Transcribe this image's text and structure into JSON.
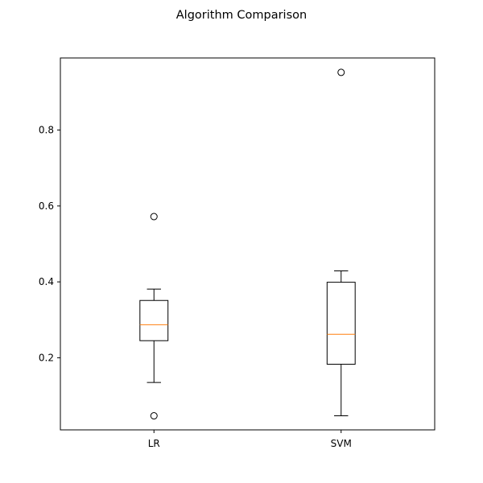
{
  "chart_data": {
    "type": "boxplot",
    "title": "Algorithm Comparison",
    "xlabel": "",
    "ylabel": "",
    "ylim": [
      0.01,
      0.99
    ],
    "yticks": [
      0.2,
      0.4,
      0.6,
      0.8
    ],
    "ytick_labels": [
      "0.2",
      "0.4",
      "0.6",
      "0.8"
    ],
    "categories": [
      "LR",
      "SVM"
    ],
    "boxes": [
      {
        "name": "LR",
        "whisker_low": 0.135,
        "q1": 0.245,
        "median": 0.287,
        "q3": 0.351,
        "whisker_high": 0.381,
        "outliers": [
          0.572,
          0.047
        ]
      },
      {
        "name": "SVM",
        "whisker_low": 0.047,
        "q1": 0.183,
        "median": 0.262,
        "q3": 0.399,
        "whisker_high": 0.429,
        "outliers": [
          0.952
        ]
      }
    ],
    "grid": false,
    "colors": {
      "box": "#000000",
      "median": "#ff7f0e",
      "outlier": "#000000"
    }
  }
}
